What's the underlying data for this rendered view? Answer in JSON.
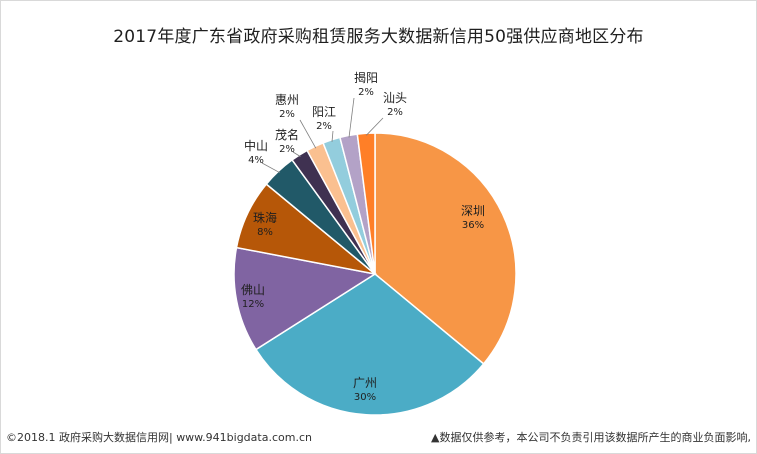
{
  "chart_data": {
    "type": "pie",
    "title": "2017年度广东省政府采购租赁服务大数据新信用50强供应商地区分布",
    "slices": [
      {
        "label": "深圳",
        "value": 36,
        "value_label": "36%",
        "color": "#F79646"
      },
      {
        "label": "广州",
        "value": 30,
        "value_label": "30%",
        "color": "#4BACC6"
      },
      {
        "label": "佛山",
        "value": 12,
        "value_label": "12%",
        "color": "#8064A2"
      },
      {
        "label": "珠海",
        "value": 8,
        "value_label": "8%",
        "color": "#B65708"
      },
      {
        "label": "中山",
        "value": 4,
        "value_label": "4%",
        "color": "#215968"
      },
      {
        "label": "茂名",
        "value": 2,
        "value_label": "2%",
        "color": "#3F3151"
      },
      {
        "label": "惠州",
        "value": 2,
        "value_label": "2%",
        "color": "#FAC090"
      },
      {
        "label": "阳江",
        "value": 2,
        "value_label": "2%",
        "color": "#93CDDD"
      },
      {
        "label": "揭阳",
        "value": 2,
        "value_label": "2%",
        "color": "#B3A2C7"
      },
      {
        "label": "汕头",
        "value": 2,
        "value_label": "2%",
        "color": "#FF7F27"
      }
    ],
    "start_angle_deg": 0,
    "direction": "clockwise",
    "legend": "none"
  },
  "footer": {
    "left": "©2018.1 政府采购大数据信用网| www.941bigdata.com.cn",
    "right": "▲数据仅供参考，本公司不负责引用该数据所产生的商业负面影响,"
  }
}
